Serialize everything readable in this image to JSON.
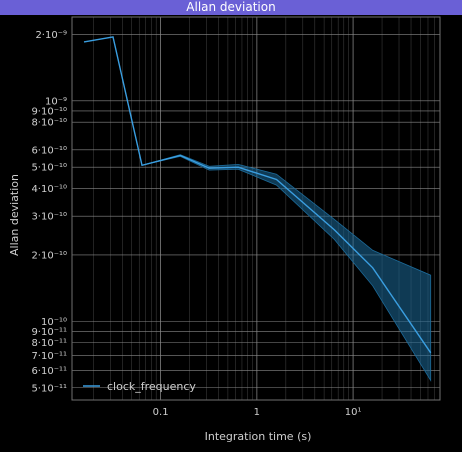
{
  "window": {
    "title": "Allan deviation"
  },
  "chart_data": {
    "type": "line",
    "xlabel": "Integration time (s)",
    "ylabel": "Allan deviation",
    "xscale": "log",
    "yscale": "log",
    "xlim": [
      0.012,
      80
    ],
    "ylim": [
      4.4e-11,
      2.4e-09
    ],
    "grid": true,
    "legend_position": "bottom-left",
    "x_ticks": [
      {
        "value": 0.1,
        "label": "0.1"
      },
      {
        "value": 1,
        "label": "1"
      },
      {
        "value": 10,
        "label": "10¹"
      }
    ],
    "y_ticks": [
      {
        "value": 5e-11,
        "label": "5·10⁻¹¹"
      },
      {
        "value": 6e-11,
        "label": "6·10⁻¹¹"
      },
      {
        "value": 7e-11,
        "label": "7·10⁻¹¹"
      },
      {
        "value": 8e-11,
        "label": "8·10⁻¹¹"
      },
      {
        "value": 9e-11,
        "label": "9·10⁻¹¹"
      },
      {
        "value": 1e-10,
        "label": "10⁻¹⁰"
      },
      {
        "value": 2e-10,
        "label": "2·10⁻¹⁰"
      },
      {
        "value": 3e-10,
        "label": "3·10⁻¹⁰"
      },
      {
        "value": 4e-10,
        "label": "4·10⁻¹⁰"
      },
      {
        "value": 5e-10,
        "label": "5·10⁻¹⁰"
      },
      {
        "value": 6e-10,
        "label": "6·10⁻¹⁰"
      },
      {
        "value": 8e-10,
        "label": "8·10⁻¹⁰"
      },
      {
        "value": 9e-10,
        "label": "9·10⁻¹⁰"
      },
      {
        "value": 1e-09,
        "label": "10⁻⁹"
      },
      {
        "value": 2e-09,
        "label": "2·10⁻⁹"
      }
    ],
    "series": [
      {
        "name": "clock_frequency",
        "color": "#3a9ee0",
        "band_color": "#1c6a99",
        "x": [
          0.016,
          0.032,
          0.064,
          0.16,
          0.32,
          0.64,
          1.6,
          6.4,
          16,
          64
        ],
        "y": [
          1.85e-09,
          1.95e-09,
          5.1e-10,
          5.65e-10,
          4.95e-10,
          5e-10,
          4.4e-10,
          2.6e-10,
          1.75e-10,
          7.2e-11
        ],
        "lower": [
          1.85e-09,
          1.95e-09,
          5.1e-10,
          5.6e-10,
          4.85e-10,
          4.9e-10,
          4.15e-10,
          2.35e-10,
          1.45e-10,
          5.4e-11
        ],
        "upper": [
          1.85e-09,
          1.95e-09,
          5.1e-10,
          5.7e-10,
          5.05e-10,
          5.15e-10,
          4.65e-10,
          2.9e-10,
          2.1e-10,
          1.62e-10
        ]
      }
    ]
  }
}
